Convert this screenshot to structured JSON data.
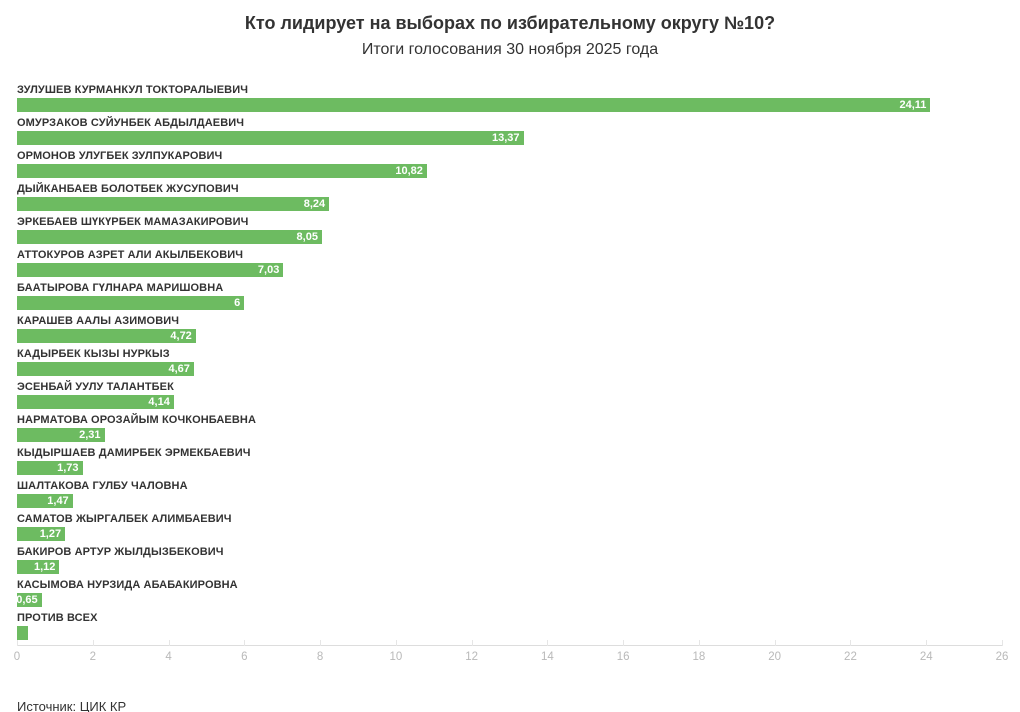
{
  "header": {
    "title": "Кто лидирует на выборах по избирательному округу №10?",
    "subtitle": "Итоги голосования 30 ноября 2025 года"
  },
  "footer": {
    "source_prefix": "Источник: ",
    "source_link": "ЦИК КР"
  },
  "colors": {
    "bar": "#6dbb61",
    "text": "#333333",
    "value_text": "#ffffff",
    "tick_label": "#b9b9b9",
    "axis_line": "#dddddd"
  },
  "chart_data": {
    "type": "bar",
    "orientation": "horizontal",
    "title": "Кто лидирует на выборах по избирательному округу №10?",
    "subtitle": "Итоги голосования 30 ноября 2025 года",
    "categories": [
      "ЗУЛУШЕВ КУРМАНКУЛ ТОКТОРАЛЫЕВИЧ",
      "ОМУРЗАКОВ СУЙУНБЕК АБДЫЛДАЕВИЧ",
      "ОРМОНОВ УЛУГБЕК ЗУЛПУКАРОВИЧ",
      "ДЫЙКАНБАЕВ БОЛОТБЕК ЖУСУПОВИЧ",
      "ЭРКЕБАЕВ ШҮКҮРБЕК МАМАЗАКИРОВИЧ",
      "АТТОКУРОВ АЗРЕТ АЛИ АКЫЛБЕКОВИЧ",
      "БААТЫРОВА ГҮЛНАРА МАРИШОВНА",
      "КАРАШЕВ ААЛЫ АЗИМОВИЧ",
      "КАДЫРБЕК КЫЗЫ НУРКЫЗ",
      "ЭСЕНБАЙ УУЛУ ТАЛАНТБЕК",
      "НАРМАТОВА ОРОЗАЙЫМ КОЧКОНБАЕВНА",
      "КЫДЫРШАЕВ ДАМИРБЕК ЭРМЕКБАЕВИЧ",
      "ШАЛТАКОВА ГУЛБУ ЧАЛОВНА",
      "САМАТОВ ЖЫРГАЛБЕК АЛИМБАЕВИЧ",
      "БАКИРОВ АРТУР ЖЫЛДЫЗБЕКОВИЧ",
      "КАСЫМОВА НУРЗИДА АБАБАКИРОВНА",
      "ПРОТИВ ВСЕХ"
    ],
    "values": [
      24.11,
      13.37,
      10.82,
      8.24,
      8.05,
      7.03,
      6,
      4.72,
      4.67,
      4.14,
      2.31,
      1.73,
      1.47,
      1.27,
      1.12,
      0.65,
      0.3
    ],
    "value_labels": [
      "24,11",
      "13,37",
      "10,82",
      "8,24",
      "8,05",
      "7,03",
      "6",
      "4,72",
      "4,67",
      "4,14",
      "2,31",
      "1,73",
      "1,47",
      "1,27",
      "1,12",
      "0,65",
      ""
    ],
    "xlabel": "",
    "ylabel": "",
    "xlim": [
      0,
      26
    ],
    "x_ticks": [
      0,
      2,
      4,
      6,
      8,
      10,
      12,
      14,
      16,
      18,
      20,
      22,
      24,
      26
    ],
    "grid": "off",
    "legend": "none",
    "bar_color": "#6dbb61"
  }
}
